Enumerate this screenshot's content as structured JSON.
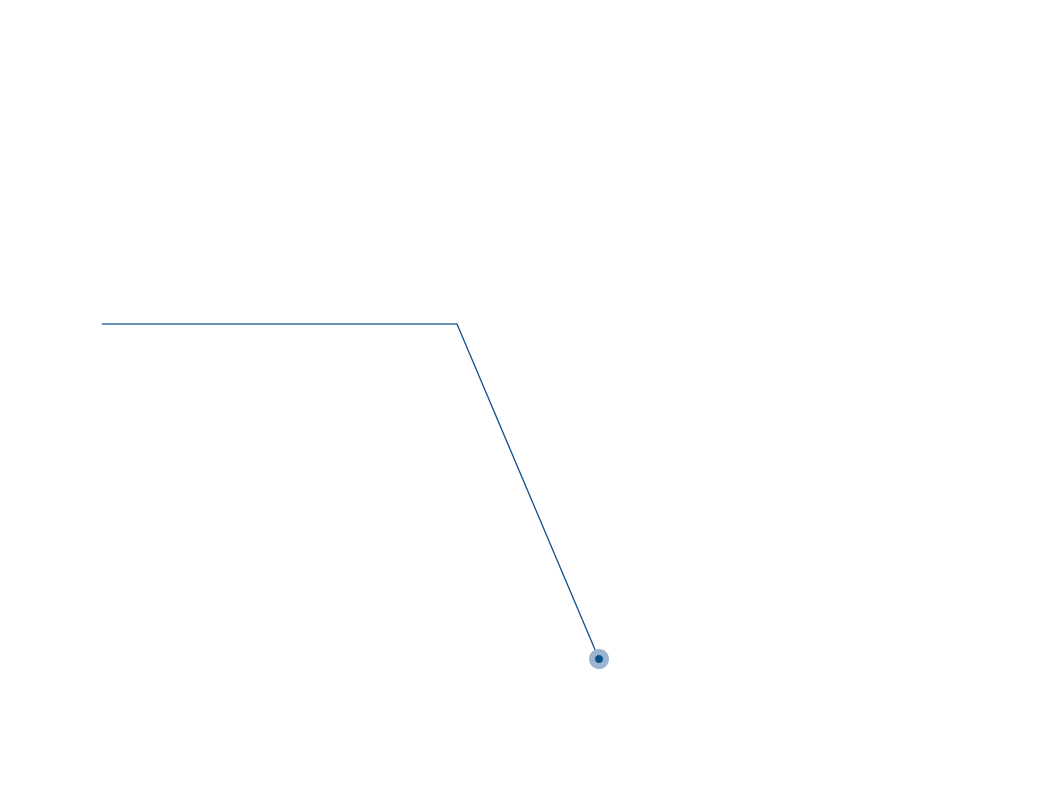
{
  "chart_data": {
    "type": "line",
    "x": [
      0,
      5,
      7
    ],
    "series": [
      {
        "values": [
          1,
          1,
          0
        ]
      }
    ],
    "xlim": [
      0,
      7
    ],
    "ylim": [
      0,
      1
    ],
    "grid": false,
    "axes_visible": false,
    "highlighted_point_index": 2,
    "line_color": "#0d4f8b",
    "highlight_halo_color": "#9bb3cf",
    "highlight_dot_color": "#0d4f8b"
  }
}
